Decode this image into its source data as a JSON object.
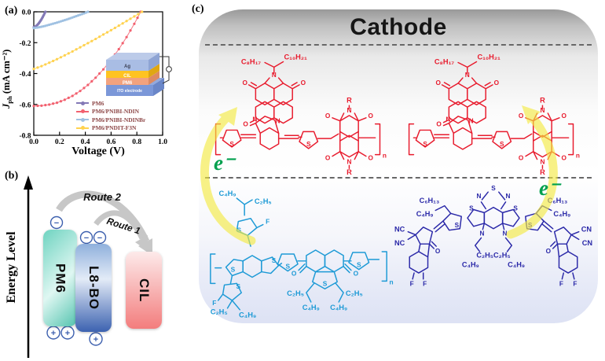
{
  "figure": {
    "panel_a_label": "(a)",
    "panel_b_label": "(b)",
    "panel_c_label": "(c)"
  },
  "chart_data": {
    "type": "scatter",
    "xlabel": "Voltage (V)",
    "ylabel": {
      "symbol": "J",
      "subscript": "ph",
      "units": " (mA cm⁻²)"
    },
    "xlim": [
      0.0,
      1.0
    ],
    "ylim": [
      -0.8,
      0.0
    ],
    "x_ticks": [
      "0.0",
      "0.2",
      "0.4",
      "0.6",
      "0.8",
      "1.0"
    ],
    "y_ticks": [
      "0.0",
      "-0.2",
      "-0.4",
      "-0.6",
      "-0.8"
    ],
    "grid": false,
    "legend_position": "inside lower-right",
    "series": [
      {
        "name": "PM6",
        "color": "#8379b6",
        "points": [
          [
            0,
            -0.1
          ],
          [
            0.01,
            -0.097
          ],
          [
            0.02,
            -0.091
          ],
          [
            0.03,
            -0.083
          ],
          [
            0.04,
            -0.073
          ],
          [
            0.05,
            -0.061
          ],
          [
            0.06,
            -0.048
          ],
          [
            0.07,
            -0.033
          ],
          [
            0.08,
            -0.017
          ],
          [
            0.09,
            0
          ]
        ]
      },
      {
        "name": "PM6/PNIBI-NDIN",
        "color": "#f2606f",
        "points": [
          [
            0,
            -0.61
          ],
          [
            0.06,
            -0.608
          ],
          [
            0.12,
            -0.601
          ],
          [
            0.18,
            -0.589
          ],
          [
            0.24,
            -0.57
          ],
          [
            0.3,
            -0.545
          ],
          [
            0.36,
            -0.513
          ],
          [
            0.42,
            -0.474
          ],
          [
            0.48,
            -0.427
          ],
          [
            0.54,
            -0.373
          ],
          [
            0.6,
            -0.311
          ],
          [
            0.66,
            -0.242
          ],
          [
            0.72,
            -0.164
          ],
          [
            0.78,
            -0.078
          ],
          [
            0.83,
            0
          ]
        ]
      },
      {
        "name": "PM6/PNIBI-NDINBr",
        "color": "#9fc1e2",
        "points": [
          [
            0,
            -0.105
          ],
          [
            0.03,
            -0.102
          ],
          [
            0.06,
            -0.097
          ],
          [
            0.09,
            -0.091
          ],
          [
            0.12,
            -0.084
          ],
          [
            0.15,
            -0.077
          ],
          [
            0.18,
            -0.07
          ],
          [
            0.21,
            -0.062
          ],
          [
            0.24,
            -0.054
          ],
          [
            0.27,
            -0.046
          ],
          [
            0.3,
            -0.037
          ],
          [
            0.33,
            -0.028
          ],
          [
            0.36,
            -0.019
          ],
          [
            0.39,
            -0.01
          ],
          [
            0.42,
            0
          ]
        ]
      },
      {
        "name": "PM6/PNDIT-F3N",
        "color": "#ffd24f",
        "points": [
          [
            0,
            -0.37
          ],
          [
            0.06,
            -0.352
          ],
          [
            0.12,
            -0.33
          ],
          [
            0.18,
            -0.307
          ],
          [
            0.24,
            -0.282
          ],
          [
            0.3,
            -0.257
          ],
          [
            0.36,
            -0.23
          ],
          [
            0.42,
            -0.203
          ],
          [
            0.48,
            -0.176
          ],
          [
            0.54,
            -0.147
          ],
          [
            0.6,
            -0.119
          ],
          [
            0.66,
            -0.09
          ],
          [
            0.72,
            -0.06
          ],
          [
            0.78,
            -0.03
          ],
          [
            0.84,
            0
          ]
        ]
      }
    ],
    "inset": {
      "layers": [
        {
          "label": "Ag",
          "color": "#a9bde4",
          "text_color": "#3a3f55"
        },
        {
          "label": "CIL",
          "color": "#ffc321",
          "text_color": "#ffffff"
        },
        {
          "label": "PM6",
          "color": "#f2a27e",
          "text_color": "#ffffff"
        },
        {
          "label": "ITO electrode",
          "color": "#7b97d8",
          "text_color": "#ffffff"
        }
      ]
    }
  },
  "panel_b": {
    "axis_label": "Energy Level",
    "route_2": "Route 2",
    "route_1": "Route 1",
    "boxes": [
      {
        "label": "PM6"
      },
      {
        "label": "L8-BO"
      },
      {
        "label": "CIL"
      }
    ],
    "minus": "−",
    "plus": "+"
  },
  "panel_c": {
    "title": "Cathode",
    "electron": "e⁻",
    "red_polymer": {
      "color": "#e81b2d",
      "c10": "C₁₀H₂₁",
      "c8": "C₈H₁₇",
      "o": "O",
      "n_atom": "N",
      "s": "S",
      "r": "R",
      "repeat": "n"
    },
    "pm6_polymer": {
      "color": "#1d9ad6",
      "c4": "C₄H₉",
      "c2": "C₂H₅",
      "f": "F",
      "s": "S",
      "o": "O",
      "repeat": "n"
    },
    "l8bo": {
      "color": "#2a28a8",
      "c6": "C₆H₁₃",
      "c4": "C₄H₉",
      "c2c2": "C₂H₅C₂H₅",
      "nc": "NC",
      "cn": "CN",
      "s": "S",
      "n_atom": "N",
      "o": "O",
      "f": "F"
    }
  }
}
